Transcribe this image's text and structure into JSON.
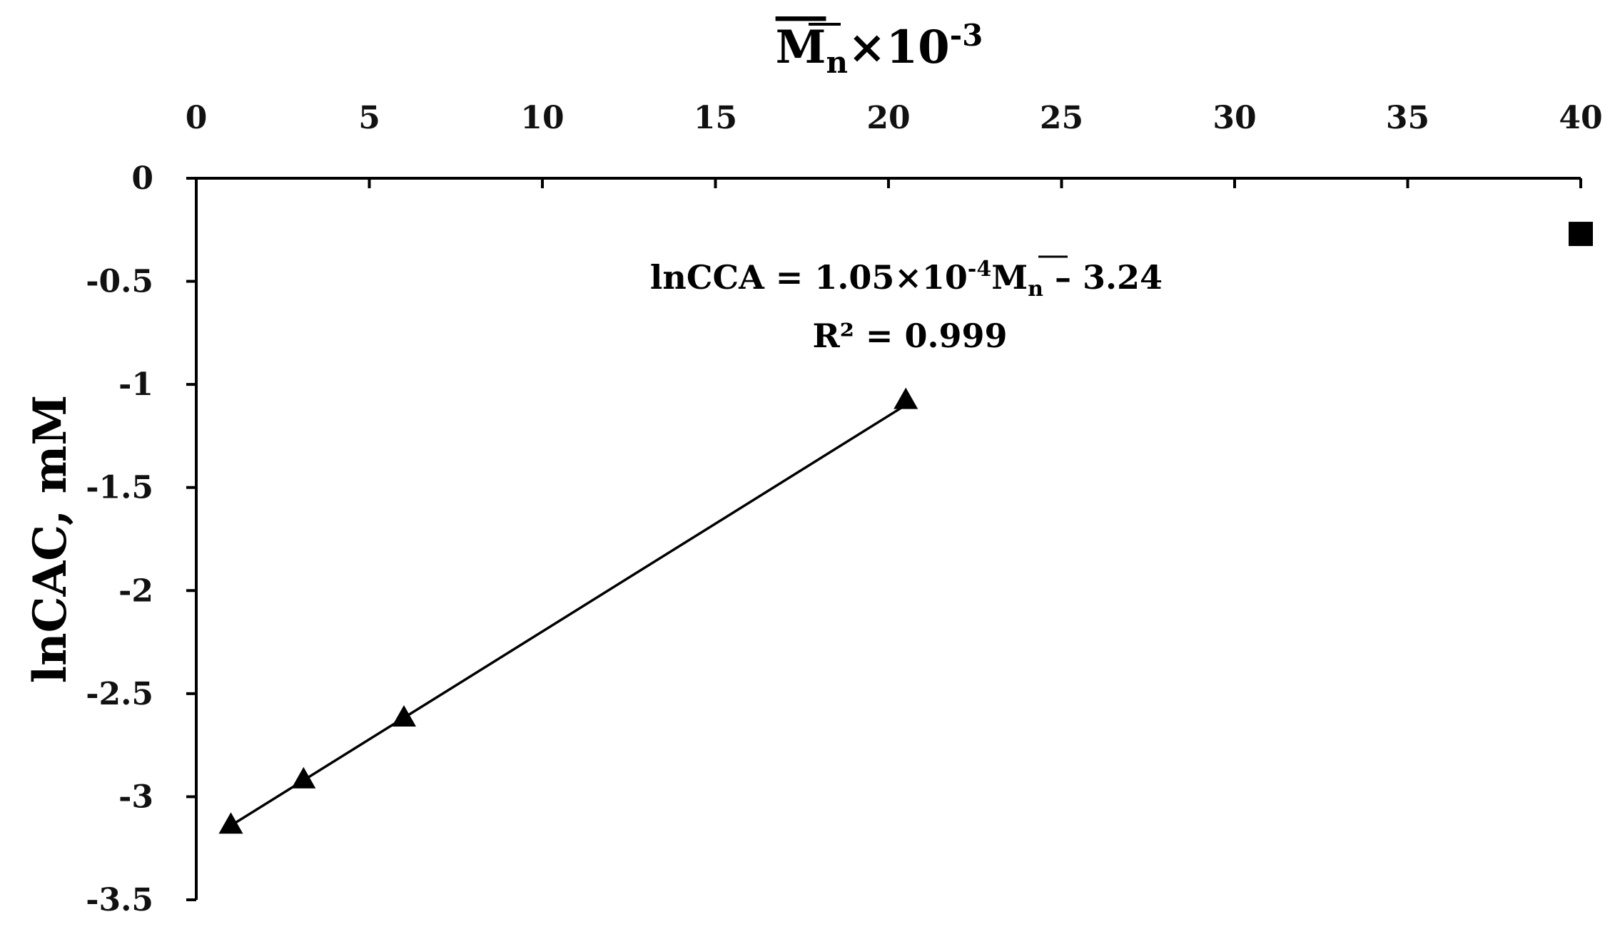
{
  "chart_data": {
    "type": "scatter",
    "x_axis": {
      "position": "top",
      "title_main": "M",
      "title_sub": "n",
      "title_mult": "×10",
      "title_exp": "-3",
      "range": [
        0,
        40
      ],
      "ticks": [
        0,
        5,
        10,
        15,
        20,
        25,
        30,
        35,
        40
      ],
      "tick_labels": [
        "0",
        "5",
        "10",
        "15",
        "20",
        "25",
        "30",
        "35",
        "40"
      ]
    },
    "y_axis": {
      "title": "lnCAC, mM",
      "range": [
        -3.5,
        0
      ],
      "ticks": [
        0,
        -0.5,
        -1,
        -1.5,
        -2,
        -2.5,
        -3,
        -3.5
      ],
      "tick_labels": [
        "0",
        "-0.5",
        "-1",
        "-1.5",
        "-2",
        "-2.5",
        "-3",
        "-3.5"
      ]
    },
    "series": [
      {
        "marker": "triangle",
        "color": "#000000",
        "x": [
          1.0,
          3.1,
          6.0,
          20.5
        ],
        "y": [
          -3.14,
          -2.92,
          -2.62,
          -1.08
        ]
      },
      {
        "marker": "square",
        "color": "#000000",
        "x": [
          40.0
        ],
        "y": [
          -0.27
        ]
      }
    ],
    "trendline": {
      "x_range": [
        1.0,
        20.5
      ],
      "y_range": [
        -3.14,
        -1.1
      ],
      "equation_parts": {
        "lhs": "lnCCA = 1.05×10",
        "exp": "-4",
        "m": "M",
        "sub": "n",
        "rhs": " – 3.24"
      },
      "r2": "R² = 0.999"
    },
    "grid": false,
    "legend": "none"
  }
}
